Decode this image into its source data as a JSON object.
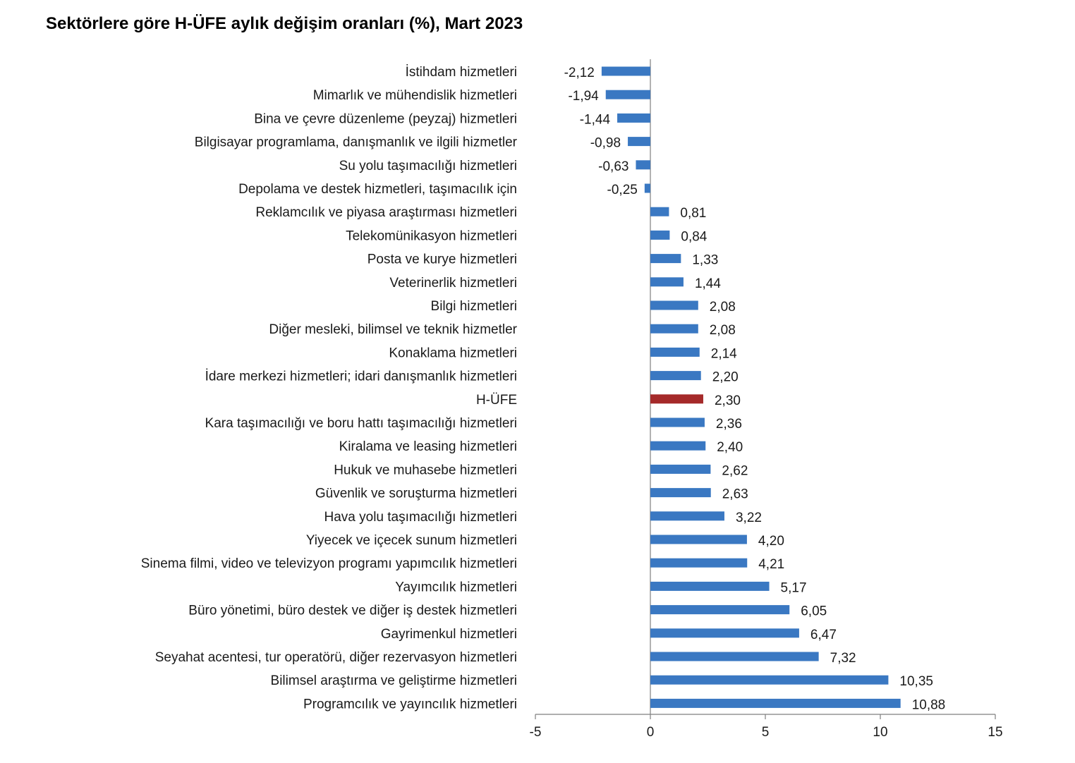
{
  "chart_data": {
    "type": "bar",
    "orientation": "horizontal",
    "title": "Sektörlere göre H-ÜFE aylık değişim oranları (%), Mart 2023",
    "xlabel": "",
    "ylabel": "",
    "xlim": [
      -5,
      15
    ],
    "ticks": [
      -5,
      0,
      5,
      10,
      15
    ],
    "grid": false,
    "legend": "none",
    "bar_color": "#3A78C2",
    "highlight_color": "#A52A2A",
    "highlight_category": "H-ÜFE",
    "categories": [
      "İstihdam hizmetleri",
      "Mimarlık ve mühendislik hizmetleri",
      "Bina ve çevre düzenleme (peyzaj) hizmetleri",
      "Bilgisayar programlama, danışmanlık ve ilgili hizmetler",
      "Su yolu taşımacılığı hizmetleri",
      "Depolama ve destek hizmetleri, taşımacılık için",
      "Reklamcılık ve piyasa araştırması hizmetleri",
      "Telekomünikasyon hizmetleri",
      "Posta ve kurye hizmetleri",
      "Veterinerlik hizmetleri",
      "Bilgi hizmetleri",
      "Diğer mesleki, bilimsel ve teknik hizmetler",
      "Konaklama hizmetleri",
      "İdare merkezi hizmetleri; idari danışmanlık hizmetleri",
      "H-ÜFE",
      "Kara taşımacılığı ve boru hattı taşımacılığı hizmetleri",
      "Kiralama ve leasing hizmetleri",
      "Hukuk ve muhasebe hizmetleri",
      "Güvenlik ve soruşturma hizmetleri",
      "Hava yolu taşımacılığı hizmetleri",
      "Yiyecek ve içecek sunum hizmetleri",
      "Sinema filmi, video ve televizyon programı yapımcılık hizmetleri",
      "Yayımcılık hizmetleri",
      "Büro yönetimi, büro destek ve diğer iş destek hizmetleri",
      "Gayrimenkul hizmetleri",
      "Seyahat acentesi, tur operatörü, diğer rezervasyon hizmetleri",
      "Bilimsel araştırma ve geliştirme hizmetleri",
      "Programcılık ve yayıncılık hizmetleri"
    ],
    "values": [
      -2.12,
      -1.94,
      -1.44,
      -0.98,
      -0.63,
      -0.25,
      0.81,
      0.84,
      1.33,
      1.44,
      2.08,
      2.08,
      2.14,
      2.2,
      2.3,
      2.36,
      2.4,
      2.62,
      2.63,
      3.22,
      4.2,
      4.21,
      5.17,
      6.05,
      6.47,
      7.32,
      10.35,
      10.88
    ],
    "value_labels": [
      "-2,12",
      "-1,94",
      "-1,44",
      "-0,98",
      "-0,63",
      "-0,25",
      "0,81",
      "0,84",
      "1,33",
      "1,44",
      "2,08",
      "2,08",
      "2,14",
      "2,20",
      "2,30",
      "2,36",
      "2,40",
      "2,62",
      "2,63",
      "3,22",
      "4,20",
      "4,21",
      "5,17",
      "6,05",
      "6,47",
      "7,32",
      "10,35",
      "10,88"
    ]
  }
}
